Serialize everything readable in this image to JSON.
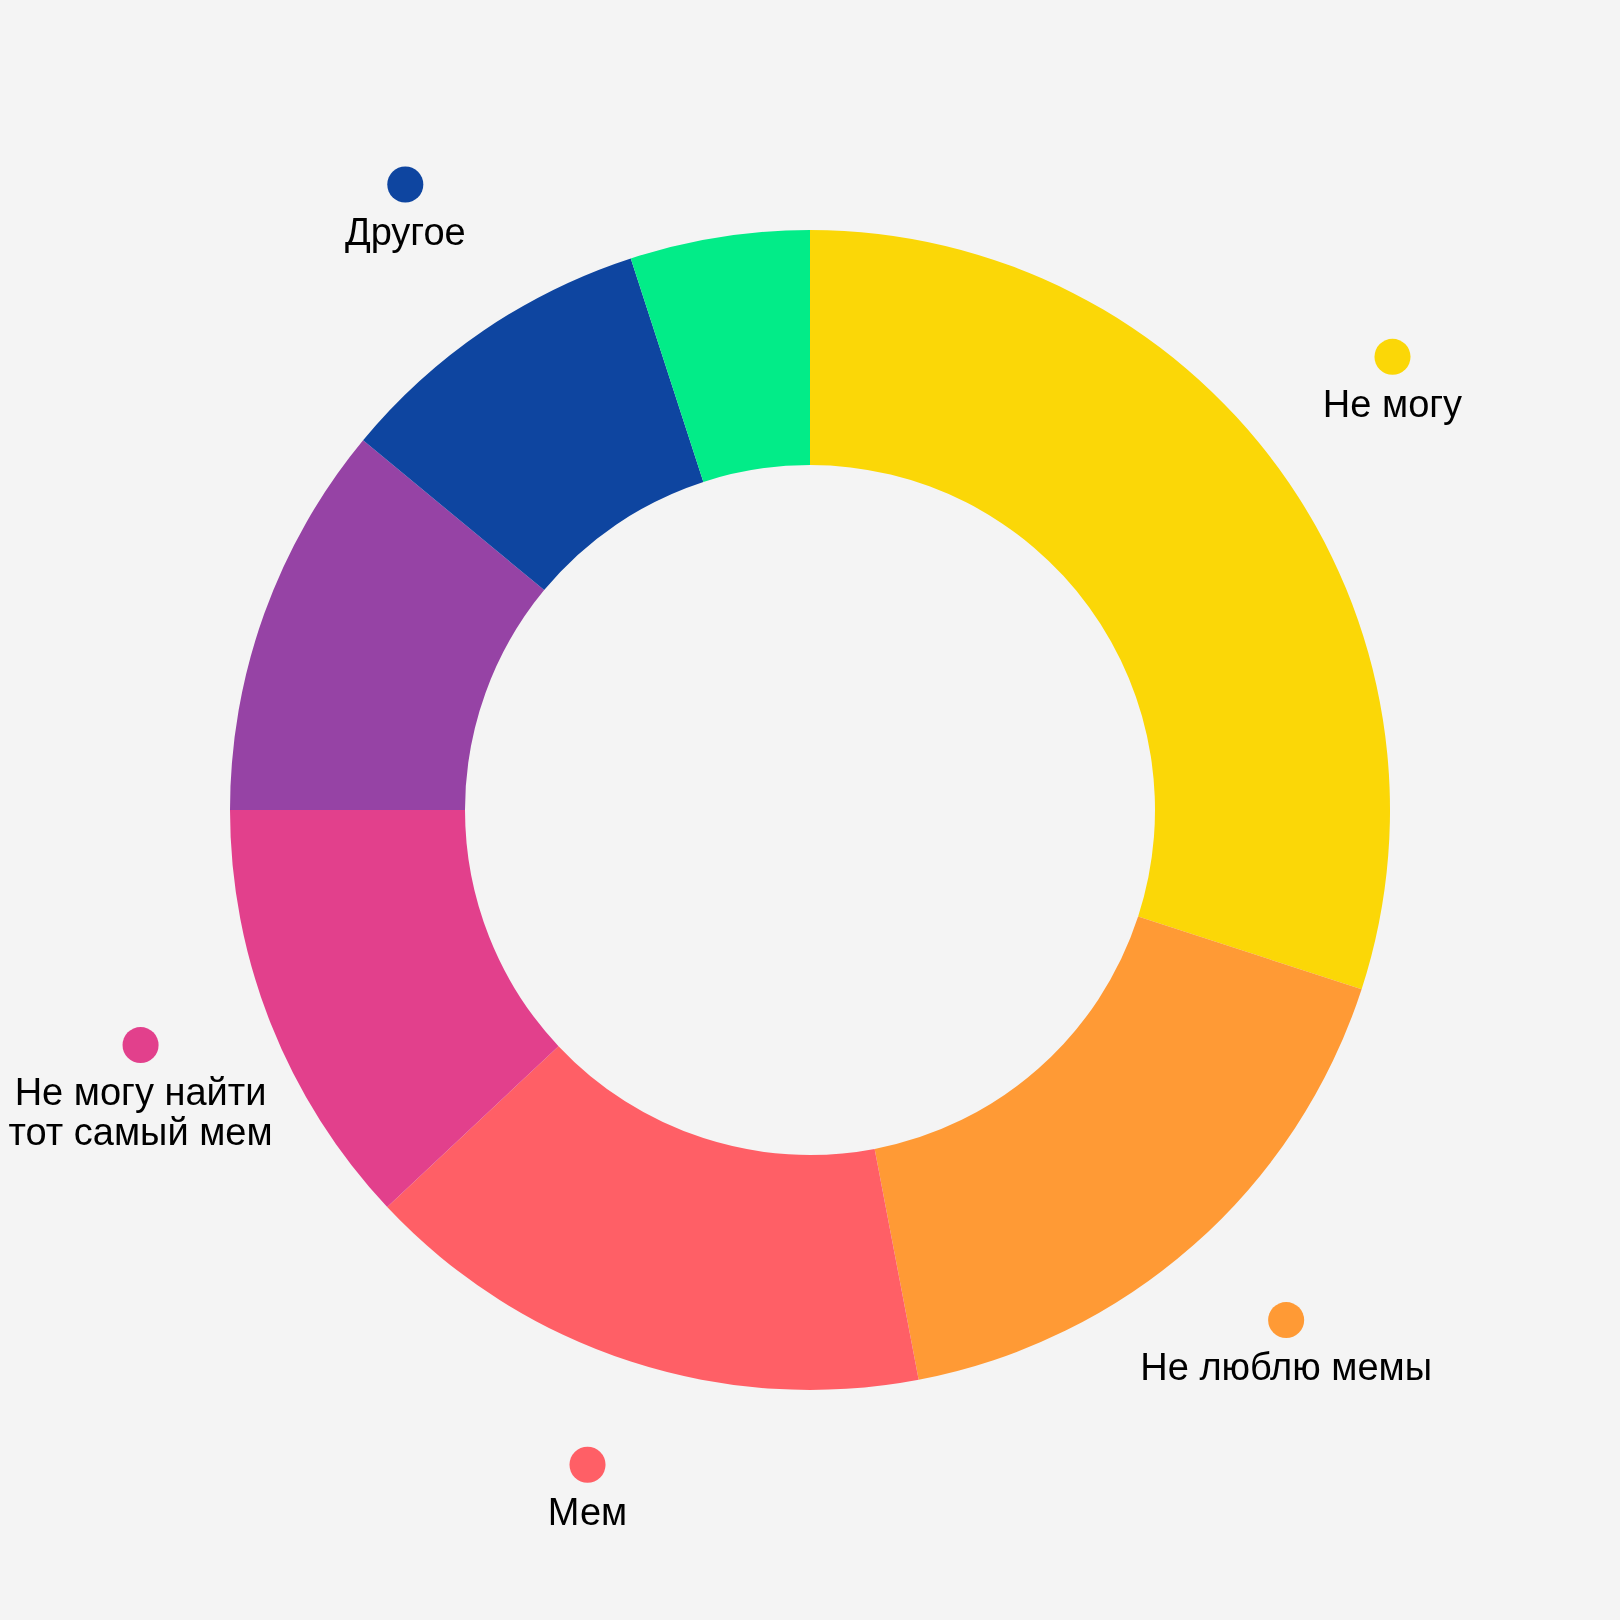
{
  "chart_data": {
    "type": "donut",
    "categories": [
      "Не могу",
      "Не люблю мемы",
      "Мем",
      "Не могу найти тот самый мем",
      null,
      "Другое",
      null
    ],
    "values": [
      30,
      17,
      16,
      12,
      11,
      9,
      5
    ],
    "colors": [
      "#fbd707",
      "#ff9a35",
      "#ff5f66",
      "#e2408c",
      "#9643a5",
      "#0e45a0",
      "#02ec88"
    ],
    "legend": "bottom left"
  }
}
